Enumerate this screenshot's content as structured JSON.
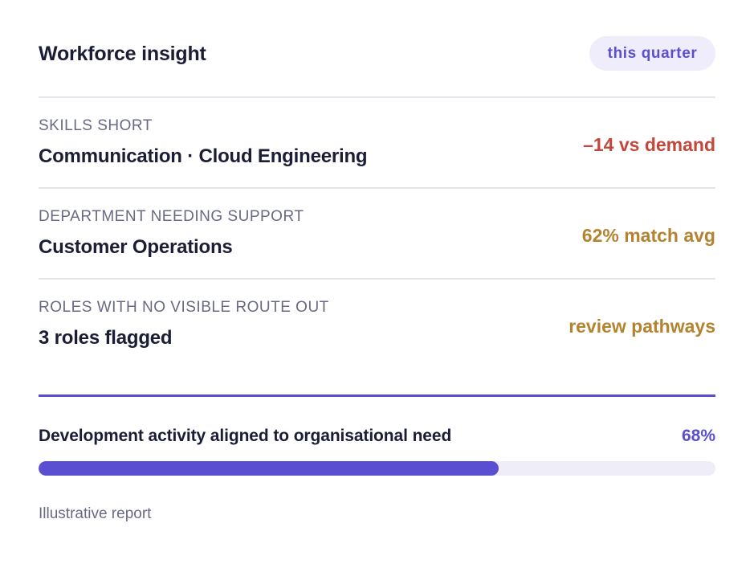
{
  "header": {
    "title": "Workforce insight",
    "period": "this quarter"
  },
  "rows": [
    {
      "label": "SKILLS SHORT",
      "value": "Communication · Cloud Engineering",
      "metric": "–14 vs demand",
      "metric_color": "#c2473d"
    },
    {
      "label": "DEPARTMENT NEEDING SUPPORT",
      "value": "Customer Operations",
      "metric": "62% match avg",
      "metric_color": "#b38330"
    },
    {
      "label": "ROLES WITH NO VISIBLE ROUTE OUT",
      "value": "3 roles flagged",
      "metric": "review pathways",
      "metric_color": "#b38330"
    }
  ],
  "progress": {
    "label": "Development activity aligned to organisational need",
    "value_text": "68%",
    "fraction": 0.68,
    "accent_color": "#5a4fd0"
  },
  "footnote": "Illustrative report"
}
